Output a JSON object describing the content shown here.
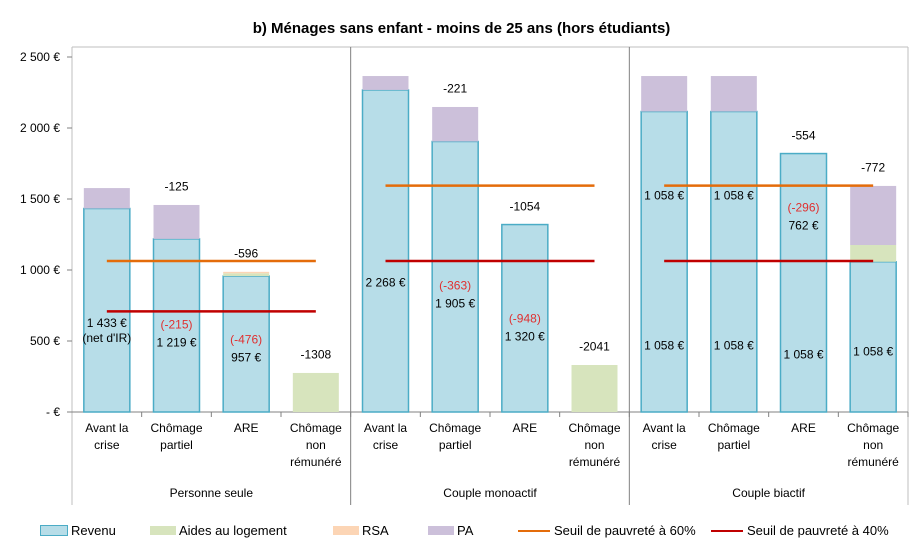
{
  "chart_data": {
    "type": "bar",
    "stacked": true,
    "title": "b) Ménages sans enfant - moins de 25 ans (hors étudiants)",
    "groups": [
      {
        "label": "Personne seule",
        "categories": [
          "Avant la crise",
          "Chômage partiel",
          "ARE",
          "Chômage non rémunéré"
        ]
      },
      {
        "label": "Couple monoactif",
        "categories": [
          "Avant la crise",
          "Chômage partiel",
          "ARE",
          "Chômage non rémunéré"
        ]
      },
      {
        "label": "Couple biactif",
        "categories": [
          "Avant la crise",
          "Chômage partiel",
          "ARE",
          "Chômage non rémunéré"
        ]
      }
    ],
    "ylim": [
      0,
      2500
    ],
    "yticks": [
      {
        "value": 0,
        "label": "-  €"
      },
      {
        "value": 500,
        "label": "500 €"
      },
      {
        "value": 1000,
        "label": "1 000 €"
      },
      {
        "value": 1500,
        "label": "1 500 €"
      },
      {
        "value": 2000,
        "label": "2 000 €"
      },
      {
        "value": 2500,
        "label": "2 500 €"
      }
    ],
    "series": [
      {
        "name": "Revenu",
        "color": "#b7dde8",
        "stroke": "#4bacc6",
        "values": [
          1433,
          1219,
          957,
          0,
          2268,
          1905,
          1320,
          0,
          2116,
          2116,
          1820,
          1058
        ],
        "value_labels": [
          [
            "1 433 € (net d'IR)"
          ],
          [
            "1 219 €"
          ],
          [
            "957 €"
          ],
          null,
          [
            "2 268 €"
          ],
          [
            "1 905 €"
          ],
          [
            "1 320 €"
          ],
          null,
          [
            "1 058 €",
            "1 058 €"
          ],
          [
            "1 058 €",
            "1 058 €"
          ],
          [
            "1 058 €",
            "762 €"
          ],
          [
            "1 058 €"
          ]
        ]
      },
      {
        "name": "Aides au logement",
        "color": "#d7e4bd",
        "values": [
          0,
          0,
          20,
          275,
          0,
          0,
          0,
          331,
          0,
          0,
          0,
          118
        ]
      },
      {
        "name": "RSA",
        "color": "#fcd5b5",
        "values": [
          0,
          0,
          10,
          0,
          0,
          0,
          0,
          0,
          0,
          0,
          0,
          0
        ]
      },
      {
        "name": "PA",
        "color": "#ccc0da",
        "values": [
          144,
          239,
          0,
          0,
          98,
          243,
          0,
          0,
          250,
          250,
          0,
          416
        ]
      }
    ],
    "thresholds": [
      {
        "name": "Seuil de pauvreté à 60%",
        "color": "#e46c0a",
        "values": [
          1063,
          1063,
          1063,
          1063,
          1594,
          1594,
          1594,
          1594,
          1594,
          1594,
          1594,
          1594
        ]
      },
      {
        "name": "Seuil de pauvreté à 40%",
        "color": "#c00000",
        "values": [
          709,
          709,
          709,
          709,
          1063,
          1063,
          1063,
          1063,
          1063,
          1063,
          1063,
          1063
        ]
      }
    ],
    "revenue_changes": {
      "color": "#e03030",
      "values": [
        null,
        -215,
        -476,
        null,
        null,
        -363,
        -948,
        null,
        null,
        null,
        -296,
        null
      ],
      "value_labels": [
        null,
        "(-215)",
        "(-476)",
        null,
        null,
        "(-363)",
        "(-948)",
        null,
        null,
        null,
        "(-296)",
        null
      ]
    },
    "differences": [
      null,
      -125,
      -596,
      -1308,
      null,
      -221,
      -1054,
      -2041,
      null,
      null,
      -554,
      -772
    ]
  }
}
